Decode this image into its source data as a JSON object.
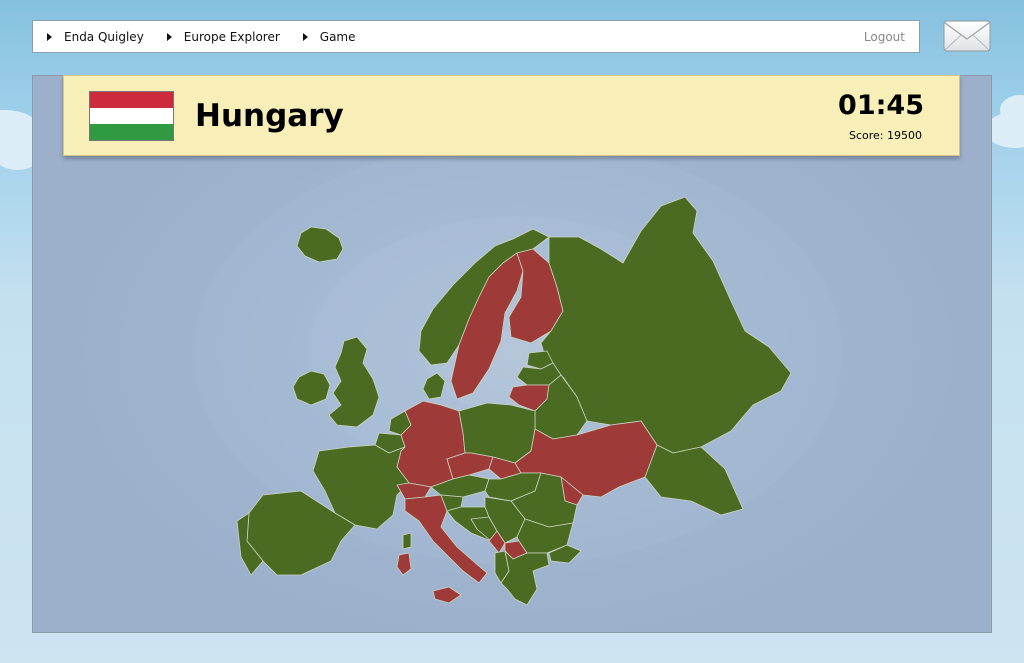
{
  "breadcrumb": [
    {
      "label": "Enda Quigley"
    },
    {
      "label": "Europe Explorer"
    },
    {
      "label": "Game"
    }
  ],
  "nav": {
    "logout_label": "Logout"
  },
  "icons": {
    "mail": "envelope-icon"
  },
  "game": {
    "country": "Hungary",
    "timer": "01:45",
    "score_text": "Score: 19500",
    "flag_colors": [
      "#cd2a3e",
      "#ffffff",
      "#2f9a42"
    ]
  },
  "map": {
    "colors": {
      "land": "#4a6b21",
      "highlight": "#9e3b39",
      "border": "#c9d3c0"
    },
    "highlighted_countries": [
      "Sweden",
      "Finland",
      "Lithuania",
      "Germany",
      "Czech Republic",
      "Slovakia",
      "Ukraine",
      "Moldova",
      "Switzerland",
      "Italy",
      "Montenegro",
      "Macedonia"
    ]
  }
}
